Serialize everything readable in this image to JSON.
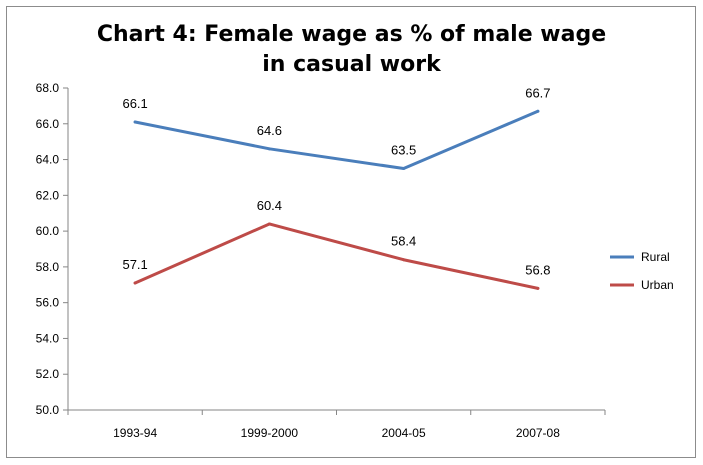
{
  "chart_data": {
    "type": "line",
    "title_line1": "Chart 4: Female wage as % of male wage",
    "title_line2": "in casual work",
    "categories": [
      "1993-94",
      "1999-2000",
      "2004-05",
      "2007-08"
    ],
    "series": [
      {
        "name": "Rural",
        "color": "#4a7ebb",
        "values": [
          66.1,
          64.6,
          63.5,
          66.7
        ],
        "labels": [
          "66.1",
          "64.6",
          "63.5",
          "66.7"
        ]
      },
      {
        "name": "Urban",
        "color": "#be4b48",
        "values": [
          57.1,
          60.4,
          58.4,
          56.8
        ],
        "labels": [
          "57.1",
          "60.4",
          "58.4",
          "56.8"
        ]
      }
    ],
    "ylim": [
      50,
      68
    ],
    "ystep": 2,
    "ytick_labels": [
      "50.0",
      "52.0",
      "54.0",
      "56.0",
      "58.0",
      "60.0",
      "62.0",
      "64.0",
      "66.0",
      "68.0"
    ],
    "grid": false,
    "legend_position": "right"
  }
}
